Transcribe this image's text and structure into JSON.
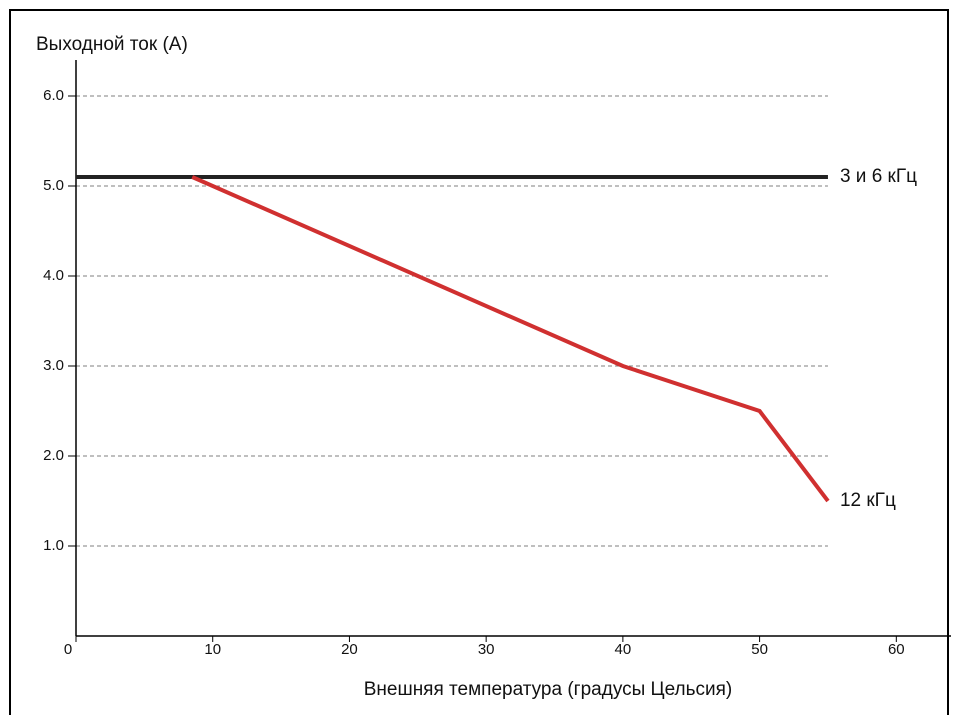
{
  "chart_data": {
    "type": "line",
    "y_label": "Выходной ток (A)",
    "x_label": "Внешняя температура (градусы Цельсия)",
    "xlim": [
      0,
      64
    ],
    "ylim": [
      0,
      6.4
    ],
    "xticks": [
      0,
      10,
      20,
      30,
      40,
      50,
      60
    ],
    "yticks": [
      {
        "value": 1,
        "label": "1.0"
      },
      {
        "value": 2,
        "label": "2.0"
      },
      {
        "value": 3,
        "label": "3.0"
      },
      {
        "value": 4,
        "label": "4.0"
      },
      {
        "value": 5,
        "label": "5.0"
      },
      {
        "value": 6,
        "label": "6.0"
      }
    ],
    "grid": true,
    "series": [
      {
        "name": "3 и 6 кГц",
        "color": "#222222",
        "x": [
          0,
          55
        ],
        "values": [
          5.1,
          5.1
        ]
      },
      {
        "name": "12 кГц",
        "color": "#d03030",
        "x": [
          8.5,
          40,
          50,
          55
        ],
        "values": [
          5.1,
          3.0,
          2.5,
          1.5
        ]
      }
    ]
  }
}
